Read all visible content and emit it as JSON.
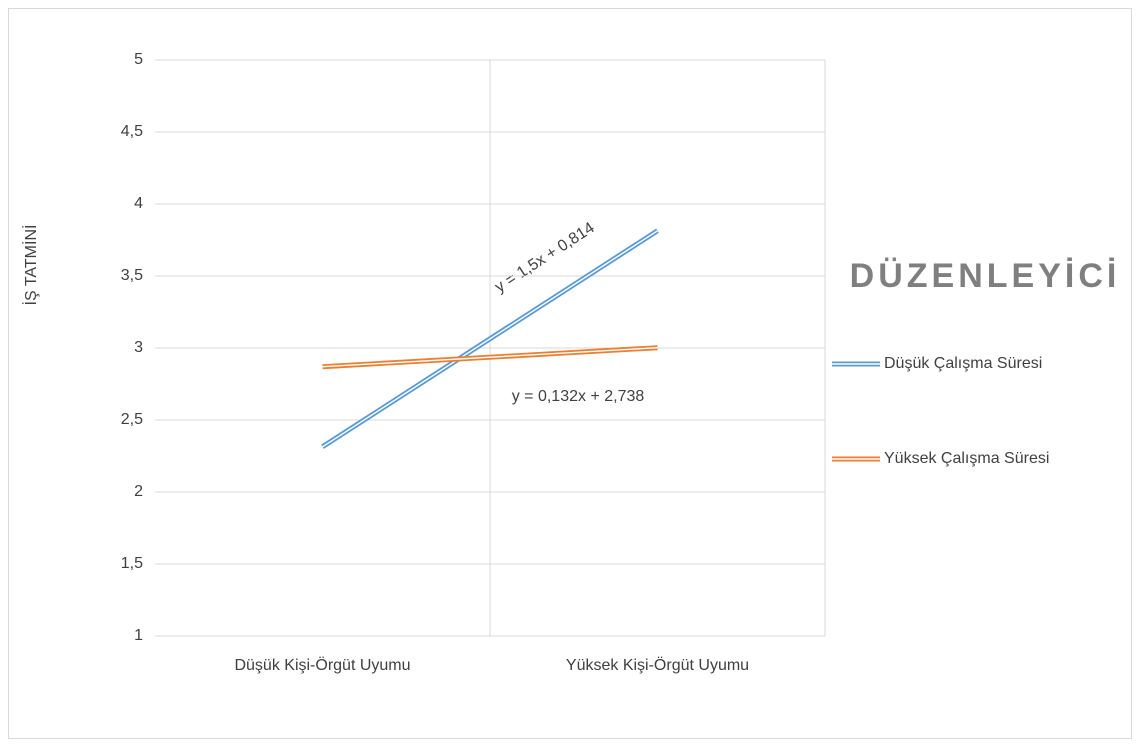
{
  "chart_data": {
    "type": "line",
    "y_label": "İŞ TATMİNİ",
    "legend_title": "DÜZENLEYİCİ",
    "legend_position": "right",
    "categories": [
      "Düşük Kişi-Örgüt Uyumu",
      "Yüksek Kişi-Örgüt Uyumu"
    ],
    "series": [
      {
        "name": "Düşük Çalışma Süresi",
        "color": "#5b9bd5",
        "values": [
          2.314,
          3.814
        ]
      },
      {
        "name": "Yüksek Çalışma Süresi",
        "color": "#ed7d31",
        "values": [
          2.87,
          3.002
        ]
      }
    ],
    "annotations": [
      "y = 1,5x + 0,814",
      "y = 0,132x + 2,738"
    ],
    "ylim": [
      1,
      5
    ],
    "yticks": [
      1,
      {
        "value": 1.5,
        "label": "1,5"
      },
      2,
      {
        "value": 2.5,
        "label": "2,5"
      },
      3,
      {
        "value": 3.5,
        "label": "3,5"
      },
      4,
      {
        "value": 4.5,
        "label": "4,5"
      },
      5
    ],
    "grid": true
  }
}
